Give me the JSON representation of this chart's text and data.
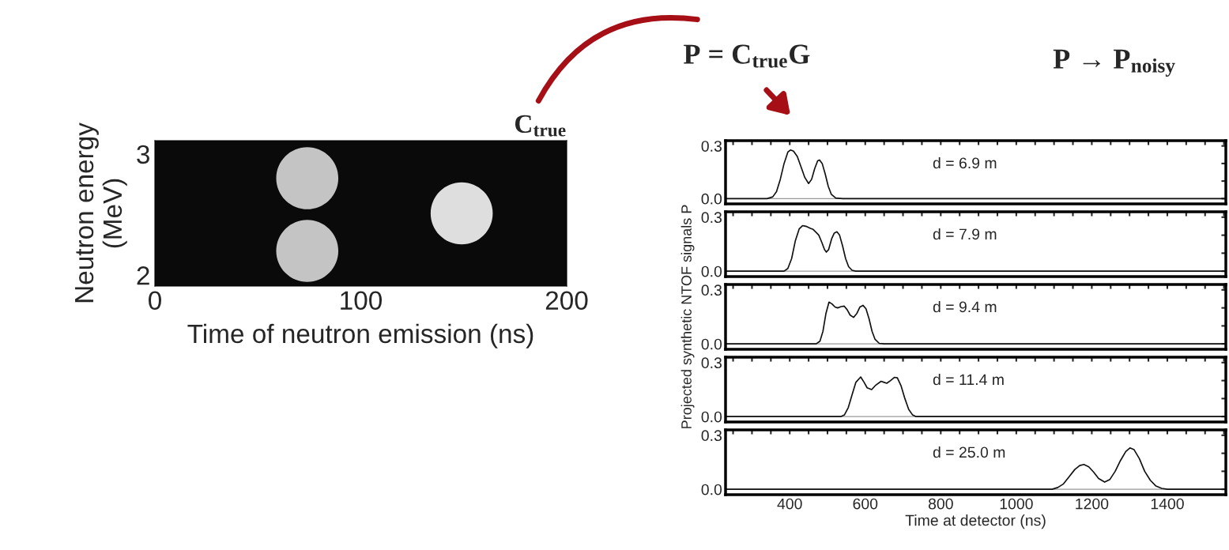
{
  "chart_data": [
    {
      "type": "bubble",
      "xlabel": "Time of neutron emission (ns)",
      "ylabel": "Neutron energy\n(MeV)",
      "annotations": [
        "C$_{true}$"
      ],
      "x": [
        74,
        74,
        149
      ],
      "values": [
        2.8,
        2.2,
        2.51
      ],
      "sizes": [
        1,
        1,
        1
      ],
      "colors": [
        "#d8d8d8",
        "#d8d8d8",
        "#f5f5f5"
      ],
      "xlim": [
        0,
        200
      ],
      "xticks": [
        0,
        100,
        200
      ],
      "ylim": [
        1.91,
        3.11
      ],
      "yticks": [
        2,
        3
      ],
      "grid": false
    },
    {
      "type": "line",
      "annotations": [
        "d = 6.9 m",
        "P = C$_{true}$G",
        "P → P$_{noisy}$"
      ],
      "tick_labels": "y",
      "x": [
        230,
        340,
        355,
        365,
        375,
        385,
        395,
        402,
        410,
        420,
        430,
        440,
        450,
        458,
        466,
        474,
        479,
        486,
        494,
        502,
        510,
        522,
        540,
        1555
      ],
      "series": [
        {
          "color": "#111111",
          "values": [
            0,
            0,
            0.01,
            0.04,
            0.11,
            0.2,
            0.265,
            0.277,
            0.27,
            0.24,
            0.18,
            0.12,
            0.086,
            0.11,
            0.17,
            0.215,
            0.22,
            0.2,
            0.14,
            0.07,
            0.025,
            0.003,
            0,
            0
          ]
        }
      ],
      "ref_lines": [
        {
          "axis": "y",
          "value": 0,
          "color": "#999999"
        }
      ],
      "xlim": [
        230,
        1555
      ],
      "ylim": [
        -0.03,
        0.33
      ],
      "yticks": [
        {
          "value": 0,
          "label": "0.0"
        },
        {
          "value": 0.1,
          "label": null
        },
        {
          "value": 0.2,
          "label": null
        },
        {
          "value": 0.3,
          "label": "0.3"
        }
      ],
      "xticks": [
        {
          "value": 250,
          "label": null
        },
        {
          "value": 300,
          "label": null
        },
        {
          "value": 350,
          "label": null
        },
        {
          "value": 400,
          "label": null
        },
        {
          "value": 450,
          "label": null
        },
        {
          "value": 500,
          "label": null
        },
        {
          "value": 550,
          "label": null
        },
        {
          "value": 600,
          "label": null
        },
        {
          "value": 650,
          "label": null
        },
        {
          "value": 700,
          "label": null
        },
        {
          "value": 750,
          "label": null
        },
        {
          "value": 800,
          "label": null
        },
        {
          "value": 850,
          "label": null
        },
        {
          "value": 900,
          "label": null
        },
        {
          "value": 950,
          "label": null
        },
        {
          "value": 1000,
          "label": null
        },
        {
          "value": 1050,
          "label": null
        },
        {
          "value": 1100,
          "label": null
        },
        {
          "value": 1150,
          "label": null
        },
        {
          "value": 1200,
          "label": null
        },
        {
          "value": 1250,
          "label": null
        },
        {
          "value": 1300,
          "label": null
        },
        {
          "value": 1350,
          "label": null
        },
        {
          "value": 1400,
          "label": null
        },
        {
          "value": 1450,
          "label": null
        },
        {
          "value": 1500,
          "label": null
        },
        {
          "value": 1550,
          "label": null
        }
      ],
      "marker": "none",
      "grid": false
    },
    {
      "type": "line",
      "annotations": [
        "d = 7.9 m"
      ],
      "tick_labels": "y",
      "x": [
        230,
        385,
        395,
        405,
        415,
        425,
        434,
        445,
        455,
        462,
        470,
        477,
        485,
        492,
        497,
        503,
        511,
        518,
        525,
        532,
        540,
        548,
        556,
        565,
        575,
        1555
      ],
      "series": [
        {
          "color": "#111111",
          "values": [
            0,
            0,
            0.015,
            0.07,
            0.17,
            0.235,
            0.253,
            0.248,
            0.238,
            0.232,
            0.215,
            0.2,
            0.16,
            0.12,
            0.106,
            0.12,
            0.18,
            0.212,
            0.219,
            0.2,
            0.14,
            0.07,
            0.025,
            0.005,
            0,
            0
          ]
        }
      ],
      "ref_lines": [
        {
          "axis": "y",
          "value": 0,
          "color": "#999999"
        }
      ],
      "xlim": [
        230,
        1555
      ],
      "ylim": [
        -0.03,
        0.33
      ],
      "yticks": [
        {
          "value": 0,
          "label": "0.0"
        },
        {
          "value": 0.1,
          "label": null
        },
        {
          "value": 0.2,
          "label": null
        },
        {
          "value": 0.3,
          "label": "0.3"
        }
      ],
      "xticks": [
        {
          "value": 250,
          "label": null
        },
        {
          "value": 300,
          "label": null
        },
        {
          "value": 350,
          "label": null
        },
        {
          "value": 400,
          "label": null
        },
        {
          "value": 450,
          "label": null
        },
        {
          "value": 500,
          "label": null
        },
        {
          "value": 550,
          "label": null
        },
        {
          "value": 600,
          "label": null
        },
        {
          "value": 650,
          "label": null
        },
        {
          "value": 700,
          "label": null
        },
        {
          "value": 750,
          "label": null
        },
        {
          "value": 800,
          "label": null
        },
        {
          "value": 850,
          "label": null
        },
        {
          "value": 900,
          "label": null
        },
        {
          "value": 950,
          "label": null
        },
        {
          "value": 1000,
          "label": null
        },
        {
          "value": 1050,
          "label": null
        },
        {
          "value": 1100,
          "label": null
        },
        {
          "value": 1150,
          "label": null
        },
        {
          "value": 1200,
          "label": null
        },
        {
          "value": 1250,
          "label": null
        },
        {
          "value": 1300,
          "label": null
        },
        {
          "value": 1350,
          "label": null
        },
        {
          "value": 1400,
          "label": null
        },
        {
          "value": 1450,
          "label": null
        },
        {
          "value": 1500,
          "label": null
        },
        {
          "value": 1550,
          "label": null
        }
      ],
      "marker": "none",
      "grid": false
    },
    {
      "type": "line",
      "annotations": [
        "d = 9.4 m"
      ],
      "tick_labels": "y",
      "ylabel": "Projected synthetic NTOF signals P",
      "x": [
        230,
        470,
        480,
        488,
        496,
        504,
        512,
        520,
        527,
        536,
        544,
        552,
        560,
        569,
        578,
        586,
        594,
        602,
        610,
        618,
        626,
        637,
        650,
        1555
      ],
      "series": [
        {
          "color": "#111111",
          "values": [
            0,
            0,
            0.015,
            0.07,
            0.17,
            0.232,
            0.222,
            0.205,
            0.2,
            0.207,
            0.21,
            0.19,
            0.16,
            0.147,
            0.17,
            0.205,
            0.214,
            0.195,
            0.14,
            0.07,
            0.025,
            0.003,
            0,
            0
          ]
        }
      ],
      "ref_lines": [
        {
          "axis": "y",
          "value": 0,
          "color": "#999999"
        }
      ],
      "xlim": [
        230,
        1555
      ],
      "ylim": [
        -0.03,
        0.33
      ],
      "yticks": [
        {
          "value": 0,
          "label": "0.0"
        },
        {
          "value": 0.1,
          "label": null
        },
        {
          "value": 0.2,
          "label": null
        },
        {
          "value": 0.3,
          "label": "0.3"
        }
      ],
      "xticks": [
        {
          "value": 250,
          "label": null
        },
        {
          "value": 300,
          "label": null
        },
        {
          "value": 350,
          "label": null
        },
        {
          "value": 400,
          "label": null
        },
        {
          "value": 450,
          "label": null
        },
        {
          "value": 500,
          "label": null
        },
        {
          "value": 550,
          "label": null
        },
        {
          "value": 600,
          "label": null
        },
        {
          "value": 650,
          "label": null
        },
        {
          "value": 700,
          "label": null
        },
        {
          "value": 750,
          "label": null
        },
        {
          "value": 800,
          "label": null
        },
        {
          "value": 850,
          "label": null
        },
        {
          "value": 900,
          "label": null
        },
        {
          "value": 950,
          "label": null
        },
        {
          "value": 1000,
          "label": null
        },
        {
          "value": 1050,
          "label": null
        },
        {
          "value": 1100,
          "label": null
        },
        {
          "value": 1150,
          "label": null
        },
        {
          "value": 1200,
          "label": null
        },
        {
          "value": 1250,
          "label": null
        },
        {
          "value": 1300,
          "label": null
        },
        {
          "value": 1350,
          "label": null
        },
        {
          "value": 1400,
          "label": null
        },
        {
          "value": 1450,
          "label": null
        },
        {
          "value": 1500,
          "label": null
        },
        {
          "value": 1550,
          "label": null
        }
      ],
      "marker": "none",
      "grid": false
    },
    {
      "type": "line",
      "annotations": [
        "d = 11.4 m"
      ],
      "tick_labels": "y",
      "x": [
        230,
        535,
        545,
        555,
        565,
        575,
        588,
        597,
        605,
        617,
        628,
        642,
        650,
        657,
        667,
        677,
        685,
        695,
        705,
        715,
        725,
        735,
        1555
      ],
      "series": [
        {
          "color": "#111111",
          "values": [
            0,
            0,
            0.01,
            0.05,
            0.12,
            0.19,
            0.22,
            0.19,
            0.16,
            0.15,
            0.175,
            0.196,
            0.19,
            0.185,
            0.2,
            0.218,
            0.215,
            0.17,
            0.1,
            0.04,
            0.01,
            0,
            0
          ]
        }
      ],
      "ref_lines": [
        {
          "axis": "y",
          "value": 0,
          "color": "#999999"
        }
      ],
      "xlim": [
        230,
        1555
      ],
      "ylim": [
        -0.03,
        0.33
      ],
      "yticks": [
        {
          "value": 0,
          "label": "0.0"
        },
        {
          "value": 0.1,
          "label": null
        },
        {
          "value": 0.2,
          "label": null
        },
        {
          "value": 0.3,
          "label": "0.3"
        }
      ],
      "xticks": [
        {
          "value": 250,
          "label": null
        },
        {
          "value": 300,
          "label": null
        },
        {
          "value": 350,
          "label": null
        },
        {
          "value": 400,
          "label": null
        },
        {
          "value": 450,
          "label": null
        },
        {
          "value": 500,
          "label": null
        },
        {
          "value": 550,
          "label": null
        },
        {
          "value": 600,
          "label": null
        },
        {
          "value": 650,
          "label": null
        },
        {
          "value": 700,
          "label": null
        },
        {
          "value": 750,
          "label": null
        },
        {
          "value": 800,
          "label": null
        },
        {
          "value": 850,
          "label": null
        },
        {
          "value": 900,
          "label": null
        },
        {
          "value": 950,
          "label": null
        },
        {
          "value": 1000,
          "label": null
        },
        {
          "value": 1050,
          "label": null
        },
        {
          "value": 1100,
          "label": null
        },
        {
          "value": 1150,
          "label": null
        },
        {
          "value": 1200,
          "label": null
        },
        {
          "value": 1250,
          "label": null
        },
        {
          "value": 1300,
          "label": null
        },
        {
          "value": 1350,
          "label": null
        },
        {
          "value": 1400,
          "label": null
        },
        {
          "value": 1450,
          "label": null
        },
        {
          "value": 1500,
          "label": null
        },
        {
          "value": 1550,
          "label": null
        }
      ],
      "marker": "none",
      "grid": false
    },
    {
      "type": "line",
      "annotations": [
        "d = 25.0 m"
      ],
      "xlabel": "Time at detector (ns)",
      "x": [
        230,
        1095,
        1110,
        1125,
        1140,
        1155,
        1168,
        1179,
        1192,
        1205,
        1218,
        1234,
        1248,
        1262,
        1276,
        1290,
        1301,
        1312,
        1326,
        1340,
        1355,
        1370,
        1385,
        1400,
        1555
      ],
      "series": [
        {
          "color": "#111111",
          "values": [
            0,
            0,
            0.01,
            0.03,
            0.07,
            0.11,
            0.132,
            0.138,
            0.125,
            0.095,
            0.06,
            0.04,
            0.055,
            0.1,
            0.16,
            0.21,
            0.23,
            0.22,
            0.17,
            0.1,
            0.05,
            0.018,
            0.005,
            0,
            0
          ]
        }
      ],
      "ref_lines": [
        {
          "axis": "y",
          "value": 0,
          "color": "#999999"
        }
      ],
      "xlim": [
        230,
        1555
      ],
      "ylim": [
        -0.03,
        0.33
      ],
      "yticks": [
        {
          "value": 0,
          "label": "0.0"
        },
        {
          "value": 0.1,
          "label": null
        },
        {
          "value": 0.2,
          "label": null
        },
        {
          "value": 0.3,
          "label": "0.3"
        }
      ],
      "xticks": [
        {
          "value": 250,
          "label": null
        },
        {
          "value": 300,
          "label": null
        },
        {
          "value": 350,
          "label": null
        },
        {
          "value": 400,
          "label": "400"
        },
        {
          "value": 450,
          "label": null
        },
        {
          "value": 500,
          "label": null
        },
        {
          "value": 550,
          "label": null
        },
        {
          "value": 600,
          "label": "600"
        },
        {
          "value": 650,
          "label": null
        },
        {
          "value": 700,
          "label": null
        },
        {
          "value": 750,
          "label": null
        },
        {
          "value": 800,
          "label": "800"
        },
        {
          "value": 850,
          "label": null
        },
        {
          "value": 900,
          "label": null
        },
        {
          "value": 950,
          "label": null
        },
        {
          "value": 1000,
          "label": "1000"
        },
        {
          "value": 1050,
          "label": null
        },
        {
          "value": 1100,
          "label": null
        },
        {
          "value": 1150,
          "label": null
        },
        {
          "value": 1200,
          "label": "1200"
        },
        {
          "value": 1250,
          "label": null
        },
        {
          "value": 1300,
          "label": null
        },
        {
          "value": 1350,
          "label": null
        },
        {
          "value": 1400,
          "label": "1400"
        },
        {
          "value": 1450,
          "label": null
        },
        {
          "value": 1500,
          "label": null
        },
        {
          "value": 1550,
          "label": null
        }
      ],
      "marker": "none",
      "grid": false
    }
  ]
}
